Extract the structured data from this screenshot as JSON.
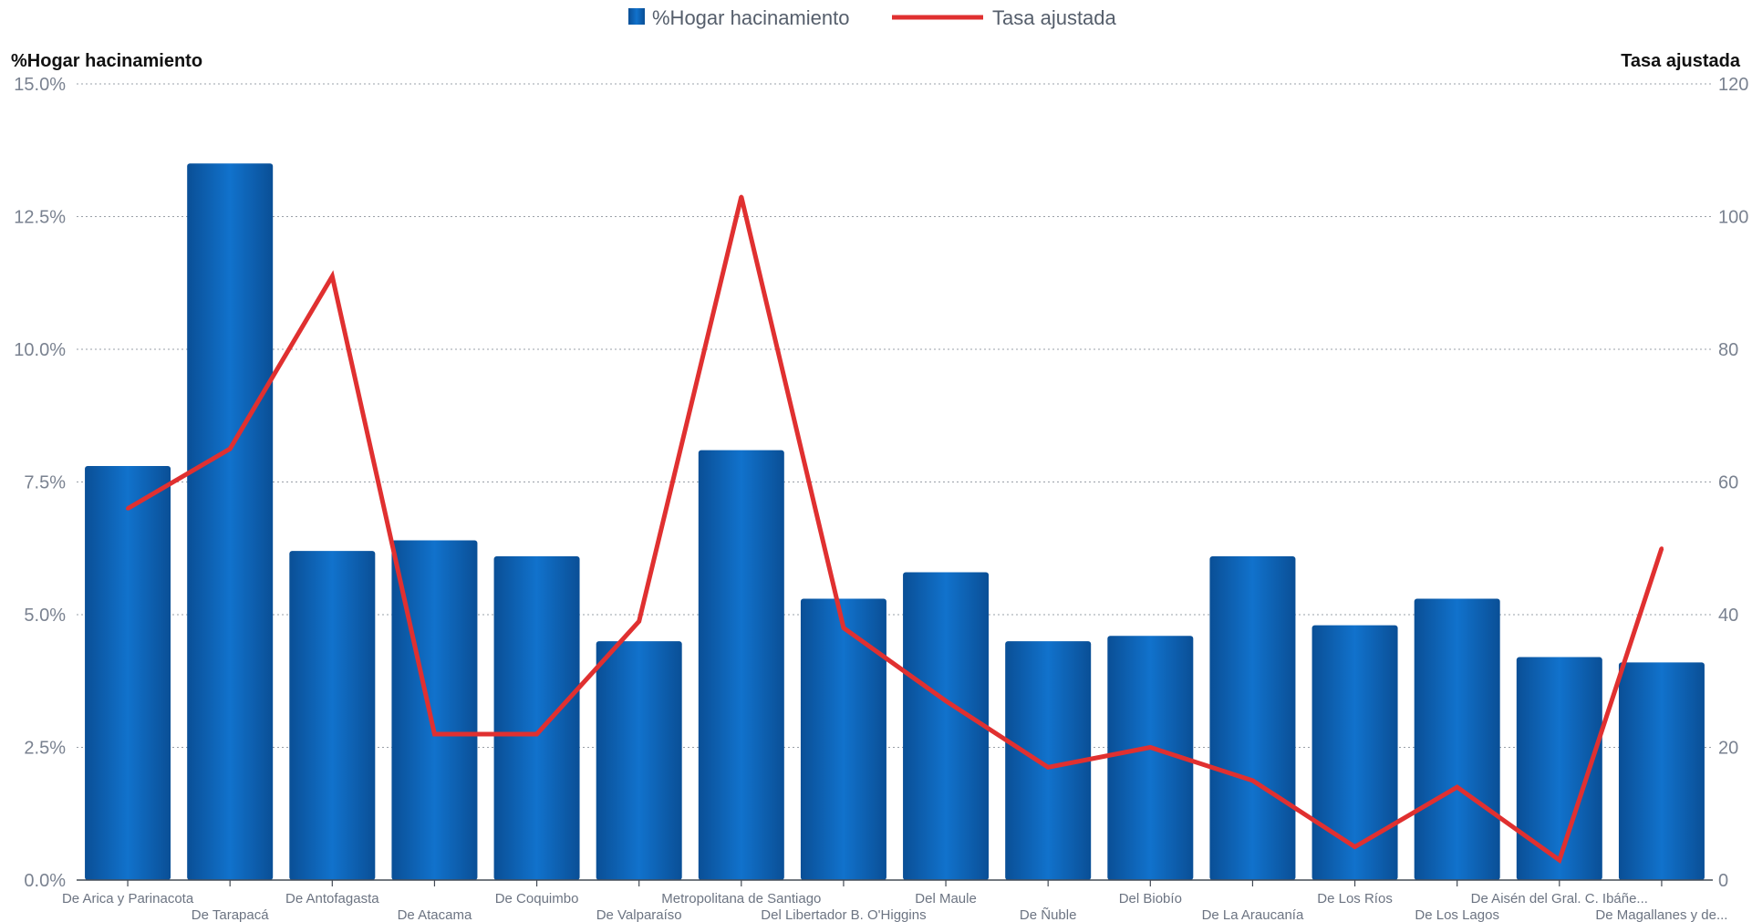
{
  "chart_data": {
    "type": "bar",
    "legend": {
      "position": "top-center"
    },
    "grid": true,
    "categories": [
      "De Arica y Parinacota",
      "De Tarapacá",
      "De Antofagasta",
      "De Atacama",
      "De Coquimbo",
      "De Valparaíso",
      "Metropolitana de Santiago",
      "Del Libertador B. O'Higgins",
      "Del Maule",
      "De Ñuble",
      "Del Biobío",
      "De La Araucanía",
      "De Los Ríos",
      "De Los Lagos",
      "De Aisén del Gral. C. Ibáñe...",
      "De Magallanes y de..."
    ],
    "series": [
      {
        "name": "%Hogar hacinamiento",
        "type": "bar",
        "axis": "left",
        "color": "#0f63b8",
        "values": [
          7.8,
          13.5,
          6.2,
          6.4,
          6.1,
          4.5,
          8.1,
          5.3,
          5.8,
          4.5,
          4.6,
          6.1,
          4.8,
          5.3,
          4.2,
          4.1
        ]
      },
      {
        "name": "Tasa ajustada",
        "type": "line",
        "axis": "right",
        "color": "#e03030",
        "values": [
          56,
          65,
          91,
          22,
          22,
          39,
          103,
          38,
          27,
          17,
          20,
          15,
          5,
          14,
          3,
          50
        ]
      }
    ],
    "y_left": {
      "label": "%Hogar hacinamiento",
      "range": [
        0,
        15
      ],
      "ticks": [
        0,
        2.5,
        5,
        7.5,
        10,
        12.5,
        15
      ],
      "tick_labels": [
        "0.0%",
        "2.5%",
        "5.0%",
        "7.5%",
        "10.0%",
        "12.5%",
        "15.0%"
      ]
    },
    "y_right": {
      "label": "Tasa ajustada",
      "range": [
        0,
        120
      ],
      "ticks": [
        0,
        20,
        40,
        60,
        80,
        100,
        120
      ],
      "tick_labels": [
        "0",
        "20",
        "40",
        "60",
        "80",
        "100",
        "120"
      ]
    }
  }
}
